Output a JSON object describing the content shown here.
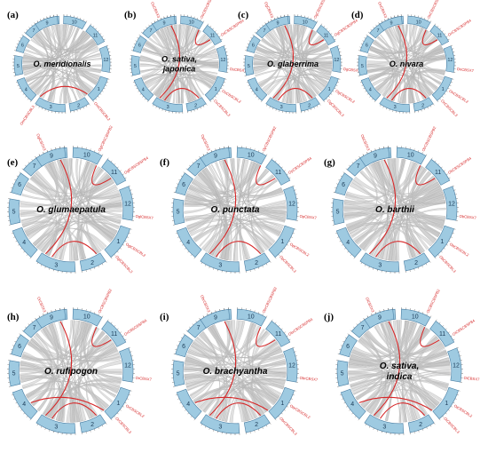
{
  "figure": {
    "panels": [
      {
        "id": "a",
        "letter": "(a)",
        "species": [
          "O. meridionalis"
        ],
        "chromosomes": [
          "1",
          "2",
          "3",
          "4",
          "5",
          "6",
          "7",
          "8",
          "9",
          "10",
          "11",
          "12"
        ],
        "gene_labels": [
          "OmCBSCBL3",
          "OmCBSCBL2"
        ]
      },
      {
        "id": "b",
        "letter": "(b)",
        "species": [
          "O. sativa,",
          "japonica"
        ],
        "chromosomes": [
          "1",
          "2",
          "3",
          "4",
          "5",
          "6",
          "7",
          "8",
          "9",
          "10",
          "11",
          "12"
        ],
        "gene_labels": [
          "OsCBSX3",
          "OsCBSCBSPB2",
          "OsCBSCBSPB4",
          "OsCBSX7",
          "OsCBSCBL2",
          "OsCBSCBL3"
        ]
      },
      {
        "id": "c",
        "letter": "(c)",
        "species": [
          "O. glaberrima"
        ],
        "chromosomes": [
          "1",
          "2",
          "3",
          "4",
          "5",
          "6",
          "7",
          "8",
          "9",
          "10",
          "11",
          "12"
        ],
        "gene_labels": [
          "OgCBSX3",
          "OgCBSCBSPB2",
          "OgCBSCBSPB4",
          "OgCBSX7",
          "OgCBSCBL2",
          "OgCBSCBL3"
        ]
      },
      {
        "id": "d",
        "letter": "(d)",
        "species": [
          "O. nivara"
        ],
        "chromosomes": [
          "1",
          "2",
          "3",
          "4",
          "5",
          "6",
          "7",
          "8",
          "9",
          "10",
          "11",
          "12"
        ],
        "gene_labels": [
          "OnCBSX3",
          "OnCBSCBSPB2",
          "OnCBSCBSPB4",
          "OnCBSX7",
          "OnCBSCBL2",
          "OnCBSCBL3"
        ]
      },
      {
        "id": "e",
        "letter": "(e)",
        "species": [
          "O. glumaepatula"
        ],
        "chromosomes": [
          "1",
          "2",
          "3",
          "4",
          "5",
          "6",
          "7",
          "8",
          "9",
          "10",
          "11",
          "12"
        ],
        "gene_labels": [
          "OglCBSX3",
          "OglCBSCBSPB2",
          "OglCBSCBSPB4",
          "OglCBSX7",
          "OglCBSCBL2",
          "OglCBSCBL3"
        ]
      },
      {
        "id": "f",
        "letter": "(f)",
        "species": [
          "O. punctata"
        ],
        "chromosomes": [
          "1",
          "2",
          "3",
          "4",
          "5",
          "6",
          "7",
          "8",
          "9",
          "10",
          "11",
          "12"
        ],
        "gene_labels": [
          "OpCBSX3",
          "OpCBSCBSPB2",
          "OpCBSCBSPB4",
          "OpCBSX7",
          "OpCBSCBL2",
          "OpCBSCBL3"
        ]
      },
      {
        "id": "g",
        "letter": "(g)",
        "species": [
          "O. barthii"
        ],
        "chromosomes": [
          "1",
          "2",
          "3",
          "4",
          "5",
          "6",
          "7",
          "8",
          "9",
          "10",
          "11",
          "12"
        ],
        "gene_labels": [
          "ObCBSX3",
          "ObCBSCBSPB2",
          "ObCBSCBSPB4",
          "ObCBSX7",
          "ObCBSCBL2",
          "ObCBSCBL3"
        ]
      },
      {
        "id": "h",
        "letter": "(h)",
        "species": [
          "O. rufipogon"
        ],
        "chromosomes": [
          "1",
          "2",
          "3",
          "4",
          "5",
          "6",
          "7",
          "8",
          "9",
          "10",
          "11",
          "12"
        ],
        "gene_labels": [
          "OrCBSX3",
          "OrCBSCBSPB2",
          "OrCBSCBSPB4",
          "OrCBSX7",
          "OrCBSCBL2",
          "OrCBSCBL3"
        ]
      },
      {
        "id": "i",
        "letter": "(i)",
        "species": [
          "O. brachyantha"
        ],
        "chromosomes": [
          "1",
          "2",
          "3",
          "4",
          "5",
          "6",
          "7",
          "8",
          "9",
          "10",
          "11",
          "12"
        ],
        "gene_labels": [
          "ObrCBSX3",
          "ObrCBSCBSPB2",
          "ObrCBSCBSPB4",
          "ObrCBSX7",
          "ObrCBSCBL2",
          "ObrCBSCBL3"
        ]
      },
      {
        "id": "j",
        "letter": "(j)",
        "species": [
          "O. sativa,",
          "indica"
        ],
        "chromosomes": [
          "1",
          "2",
          "3",
          "4",
          "5",
          "6",
          "7",
          "8",
          "9",
          "10",
          "11",
          "12"
        ],
        "gene_labels": [
          "OiCBSX3",
          "OiCBSCBSPB2",
          "OiCBSCBSPB4",
          "OiCBSX7",
          "OiCBSCBL2",
          "OiCBSCBL3"
        ]
      }
    ],
    "colors": {
      "chromosome_fill": "#9ecae1",
      "chromosome_stroke": "#4a7ea3",
      "synteny_links": "#c8c8c8",
      "highlight_links": "#d62728",
      "gene_label": "#d62728",
      "letters": "#000000"
    }
  }
}
